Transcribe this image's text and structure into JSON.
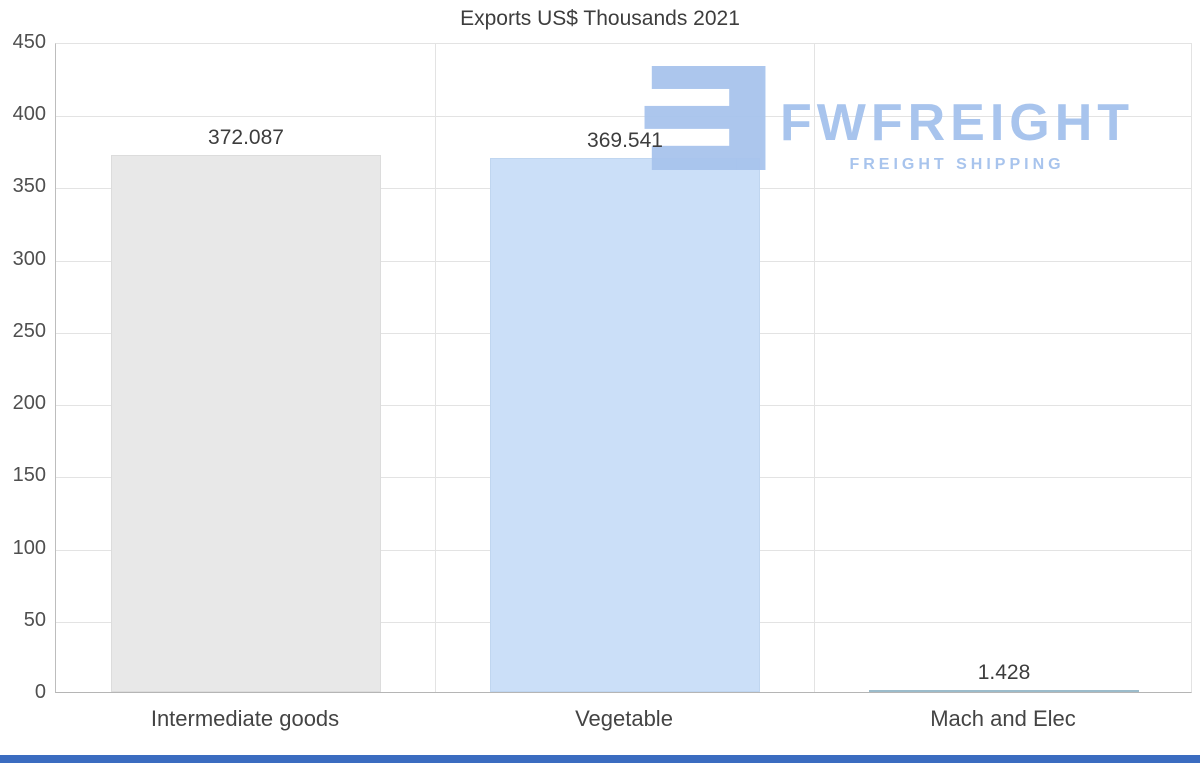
{
  "chart_data": {
    "type": "bar",
    "title": "Exports US$ Thousands 2021",
    "categories": [
      "Intermediate goods",
      "Vegetable",
      "Mach and Elec"
    ],
    "values": [
      372.087,
      369.541,
      1.428
    ],
    "value_labels": [
      "372.087",
      "369.541",
      "1.428"
    ],
    "ylim": [
      0,
      450
    ],
    "yticks": [
      0,
      50,
      100,
      150,
      200,
      250,
      300,
      350,
      400,
      450
    ],
    "grid": true,
    "legend": "none",
    "xlabel": "",
    "ylabel": "",
    "bar_colors": [
      "#e8e8e8",
      "#cbdff8",
      "#d8e6f1"
    ],
    "bar_border_colors": [
      "#dcdcdc",
      "#c0d6f0",
      "#9cbccb"
    ]
  },
  "watermark": {
    "brand": "FWFREIGHT",
    "tagline": "FREIGHT SHIPPING",
    "color": "#a8c4ed"
  },
  "footer": {
    "color": "#3b6cc0"
  }
}
